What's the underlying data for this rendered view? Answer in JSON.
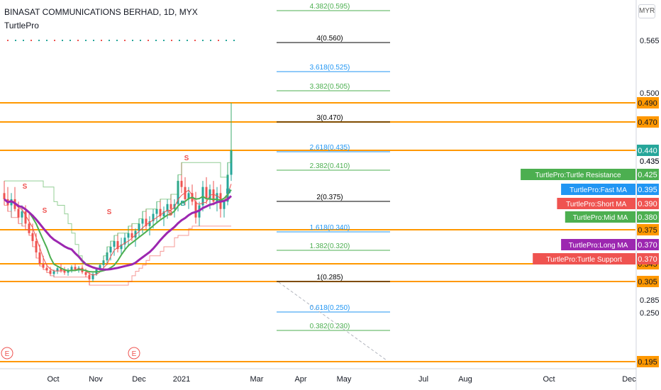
{
  "header": {
    "title": "BINASAT COMMUNICATIONS BERHAD, 1D, MYX",
    "indicator": "TurtlePro"
  },
  "currency": "MYR",
  "chart_data": {
    "type": "candlestick",
    "x_ticks": [
      "Oct",
      "Nov",
      "Dec",
      "2021",
      "Mar",
      "Apr",
      "May",
      "Jul",
      "Aug",
      "Oct",
      "Dec"
    ],
    "y_ticks": [
      "0.565",
      "0.500",
      "0.435",
      "0.250"
    ],
    "last_price": 0.44,
    "horizontal_levels": [
      {
        "price": 0.49,
        "label": "0.490"
      },
      {
        "price": 0.47,
        "label": "0.470"
      },
      {
        "price": 0.44,
        "label": "0.440"
      },
      {
        "price": 0.375,
        "label": "0.375"
      },
      {
        "price": 0.345,
        "label": "0.345"
      },
      {
        "price": 0.305,
        "label": "0.305"
      },
      {
        "price": 0.195,
        "label": "0.195"
      }
    ],
    "extra_axis_labels": [
      "0.435",
      "0.285"
    ],
    "fib_levels": [
      {
        "label": "4.382(0.595)",
        "color": "#4caf50"
      },
      {
        "label": "4(0.560)",
        "color": "#000000"
      },
      {
        "label": "3.618(0.525)",
        "color": "#2196f3"
      },
      {
        "label": "3.382(0.505)",
        "color": "#4caf50"
      },
      {
        "label": "3(0.470)",
        "color": "#000000"
      },
      {
        "label": "2.618(0.435)",
        "color": "#2196f3"
      },
      {
        "label": "2.382(0.410)",
        "color": "#4caf50"
      },
      {
        "label": "2(0.375)",
        "color": "#000000"
      },
      {
        "label": "1.618(0.340)",
        "color": "#2196f3"
      },
      {
        "label": "1.382(0.320)",
        "color": "#4caf50"
      },
      {
        "label": "1(0.285)",
        "color": "#000000"
      },
      {
        "label": "0.618(0.250)",
        "color": "#2196f3"
      },
      {
        "label": "0.382(0.230)",
        "color": "#4caf50"
      }
    ],
    "indicator_labels": [
      {
        "name": "TurtlePro:Turtle Resistance",
        "value": "0.425",
        "color": "#4caf50"
      },
      {
        "name": "TurtlePro:Fast MA",
        "value": "0.395",
        "color": "#2196f3"
      },
      {
        "name": "TurtlePro:Short MA",
        "value": "0.390",
        "color": "#ef5350"
      },
      {
        "name": "TurtlePro:Mid MA",
        "value": "0.380",
        "color": "#4caf50"
      },
      {
        "name": "TurtlePro:Long MA",
        "value": "0.370",
        "color": "#9c27b0"
      },
      {
        "name": "TurtlePro:Turtle Support",
        "value": "0.370",
        "color": "#ef5350"
      }
    ],
    "markers": [
      "S",
      "S",
      "S",
      "S",
      "S",
      "B",
      "B"
    ],
    "event_markers": [
      "E",
      "E"
    ],
    "candles": [
      [
        0.405,
        0.415,
        0.395,
        0.4
      ],
      [
        0.4,
        0.41,
        0.39,
        0.395
      ],
      [
        0.395,
        0.405,
        0.385,
        0.4
      ],
      [
        0.4,
        0.41,
        0.39,
        0.392
      ],
      [
        0.392,
        0.398,
        0.38,
        0.385
      ],
      [
        0.385,
        0.395,
        0.378,
        0.39
      ],
      [
        0.39,
        0.395,
        0.375,
        0.38
      ],
      [
        0.38,
        0.388,
        0.37,
        0.372
      ],
      [
        0.372,
        0.38,
        0.36,
        0.365
      ],
      [
        0.365,
        0.372,
        0.35,
        0.355
      ],
      [
        0.355,
        0.362,
        0.34,
        0.345
      ],
      [
        0.345,
        0.352,
        0.332,
        0.336
      ],
      [
        0.336,
        0.345,
        0.325,
        0.33
      ],
      [
        0.33,
        0.338,
        0.318,
        0.322
      ],
      [
        0.322,
        0.332,
        0.315,
        0.328
      ],
      [
        0.328,
        0.34,
        0.322,
        0.335
      ],
      [
        0.335,
        0.345,
        0.325,
        0.33
      ],
      [
        0.33,
        0.338,
        0.32,
        0.325
      ],
      [
        0.325,
        0.335,
        0.318,
        0.33
      ],
      [
        0.33,
        0.342,
        0.325,
        0.338
      ],
      [
        0.338,
        0.345,
        0.328,
        0.332
      ],
      [
        0.332,
        0.34,
        0.325,
        0.336
      ],
      [
        0.336,
        0.342,
        0.322,
        0.326
      ],
      [
        0.326,
        0.334,
        0.315,
        0.32
      ],
      [
        0.32,
        0.328,
        0.3,
        0.31
      ],
      [
        0.31,
        0.325,
        0.305,
        0.322
      ],
      [
        0.322,
        0.335,
        0.318,
        0.332
      ],
      [
        0.332,
        0.345,
        0.328,
        0.342
      ],
      [
        0.342,
        0.352,
        0.335,
        0.348
      ],
      [
        0.348,
        0.36,
        0.342,
        0.355
      ],
      [
        0.355,
        0.365,
        0.348,
        0.36
      ],
      [
        0.36,
        0.37,
        0.352,
        0.365
      ],
      [
        0.365,
        0.372,
        0.355,
        0.358
      ],
      [
        0.358,
        0.368,
        0.352,
        0.362
      ],
      [
        0.362,
        0.372,
        0.356,
        0.368
      ],
      [
        0.368,
        0.378,
        0.36,
        0.372
      ],
      [
        0.372,
        0.38,
        0.365,
        0.368
      ],
      [
        0.368,
        0.376,
        0.36,
        0.374
      ],
      [
        0.374,
        0.384,
        0.368,
        0.38
      ],
      [
        0.38,
        0.39,
        0.372,
        0.384
      ],
      [
        0.384,
        0.392,
        0.375,
        0.378
      ],
      [
        0.378,
        0.386,
        0.37,
        0.382
      ],
      [
        0.382,
        0.392,
        0.376,
        0.388
      ],
      [
        0.388,
        0.398,
        0.38,
        0.392
      ],
      [
        0.392,
        0.4,
        0.384,
        0.386
      ],
      [
        0.386,
        0.394,
        0.378,
        0.39
      ],
      [
        0.39,
        0.4,
        0.384,
        0.396
      ],
      [
        0.396,
        0.404,
        0.388,
        0.392
      ],
      [
        0.392,
        0.4,
        0.385,
        0.396
      ],
      [
        0.396,
        0.42,
        0.39,
        0.415
      ],
      [
        0.415,
        0.43,
        0.405,
        0.41
      ],
      [
        0.41,
        0.418,
        0.395,
        0.4
      ],
      [
        0.4,
        0.41,
        0.392,
        0.405
      ],
      [
        0.405,
        0.412,
        0.395,
        0.398
      ],
      [
        0.398,
        0.406,
        0.38,
        0.385
      ],
      [
        0.385,
        0.398,
        0.378,
        0.395
      ],
      [
        0.395,
        0.415,
        0.39,
        0.41
      ],
      [
        0.41,
        0.418,
        0.396,
        0.4
      ],
      [
        0.4,
        0.412,
        0.392,
        0.408
      ],
      [
        0.408,
        0.415,
        0.395,
        0.398
      ],
      [
        0.398,
        0.41,
        0.39,
        0.405
      ],
      [
        0.405,
        0.412,
        0.385,
        0.392
      ],
      [
        0.392,
        0.4,
        0.385,
        0.398
      ],
      [
        0.398,
        0.43,
        0.395,
        0.42
      ],
      [
        0.42,
        0.49,
        0.415,
        0.44
      ]
    ]
  }
}
